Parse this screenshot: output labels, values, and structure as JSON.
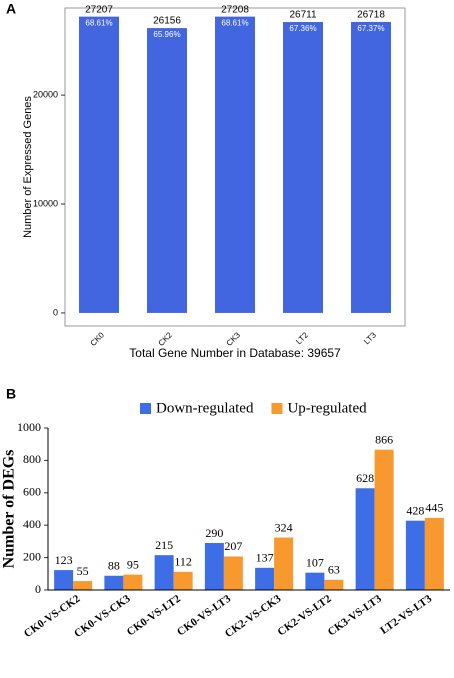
{
  "chart_data": [
    {
      "type": "bar",
      "panel": "A",
      "categories": [
        "CK0",
        "CK2",
        "CK3",
        "LT2",
        "LT3"
      ],
      "values": [
        27207,
        26156,
        27208,
        26711,
        26718
      ],
      "inner_labels": [
        "68.61%",
        "65.96%",
        "68.61%",
        "67.36%",
        "67.37%"
      ],
      "color": "#4166e0",
      "ylim": [
        -1200,
        28000
      ],
      "yticks": [
        0,
        10000,
        20000
      ],
      "xlabel": "Total Gene Number in Database: 39657",
      "ylabel": "Number of Expressed Genes",
      "frame": true
    },
    {
      "type": "grouped_bar",
      "panel": "B",
      "categories": [
        "CK0-VS-CK2",
        "CK0-VS-CK3",
        "CK0-VS-LT2",
        "CK0-VS-LT3",
        "CK2-VS-CK3",
        "CK2-VS-LT2",
        "CK3-VS-LT3",
        "LT2-VS-LT3"
      ],
      "series": [
        {
          "name": "Down-regulated",
          "color": "#3d6ee6",
          "values": [
            123,
            88,
            215,
            290,
            137,
            107,
            628,
            428
          ]
        },
        {
          "name": "Up-regulated",
          "color": "#f7992f",
          "values": [
            55,
            95,
            112,
            207,
            324,
            63,
            866,
            445
          ]
        }
      ],
      "ylim": [
        0,
        1000
      ],
      "yticks": [
        0,
        200,
        400,
        600,
        800,
        1000
      ],
      "ylabel": "Number of DEGs",
      "legend": "top",
      "frame": false
    }
  ]
}
